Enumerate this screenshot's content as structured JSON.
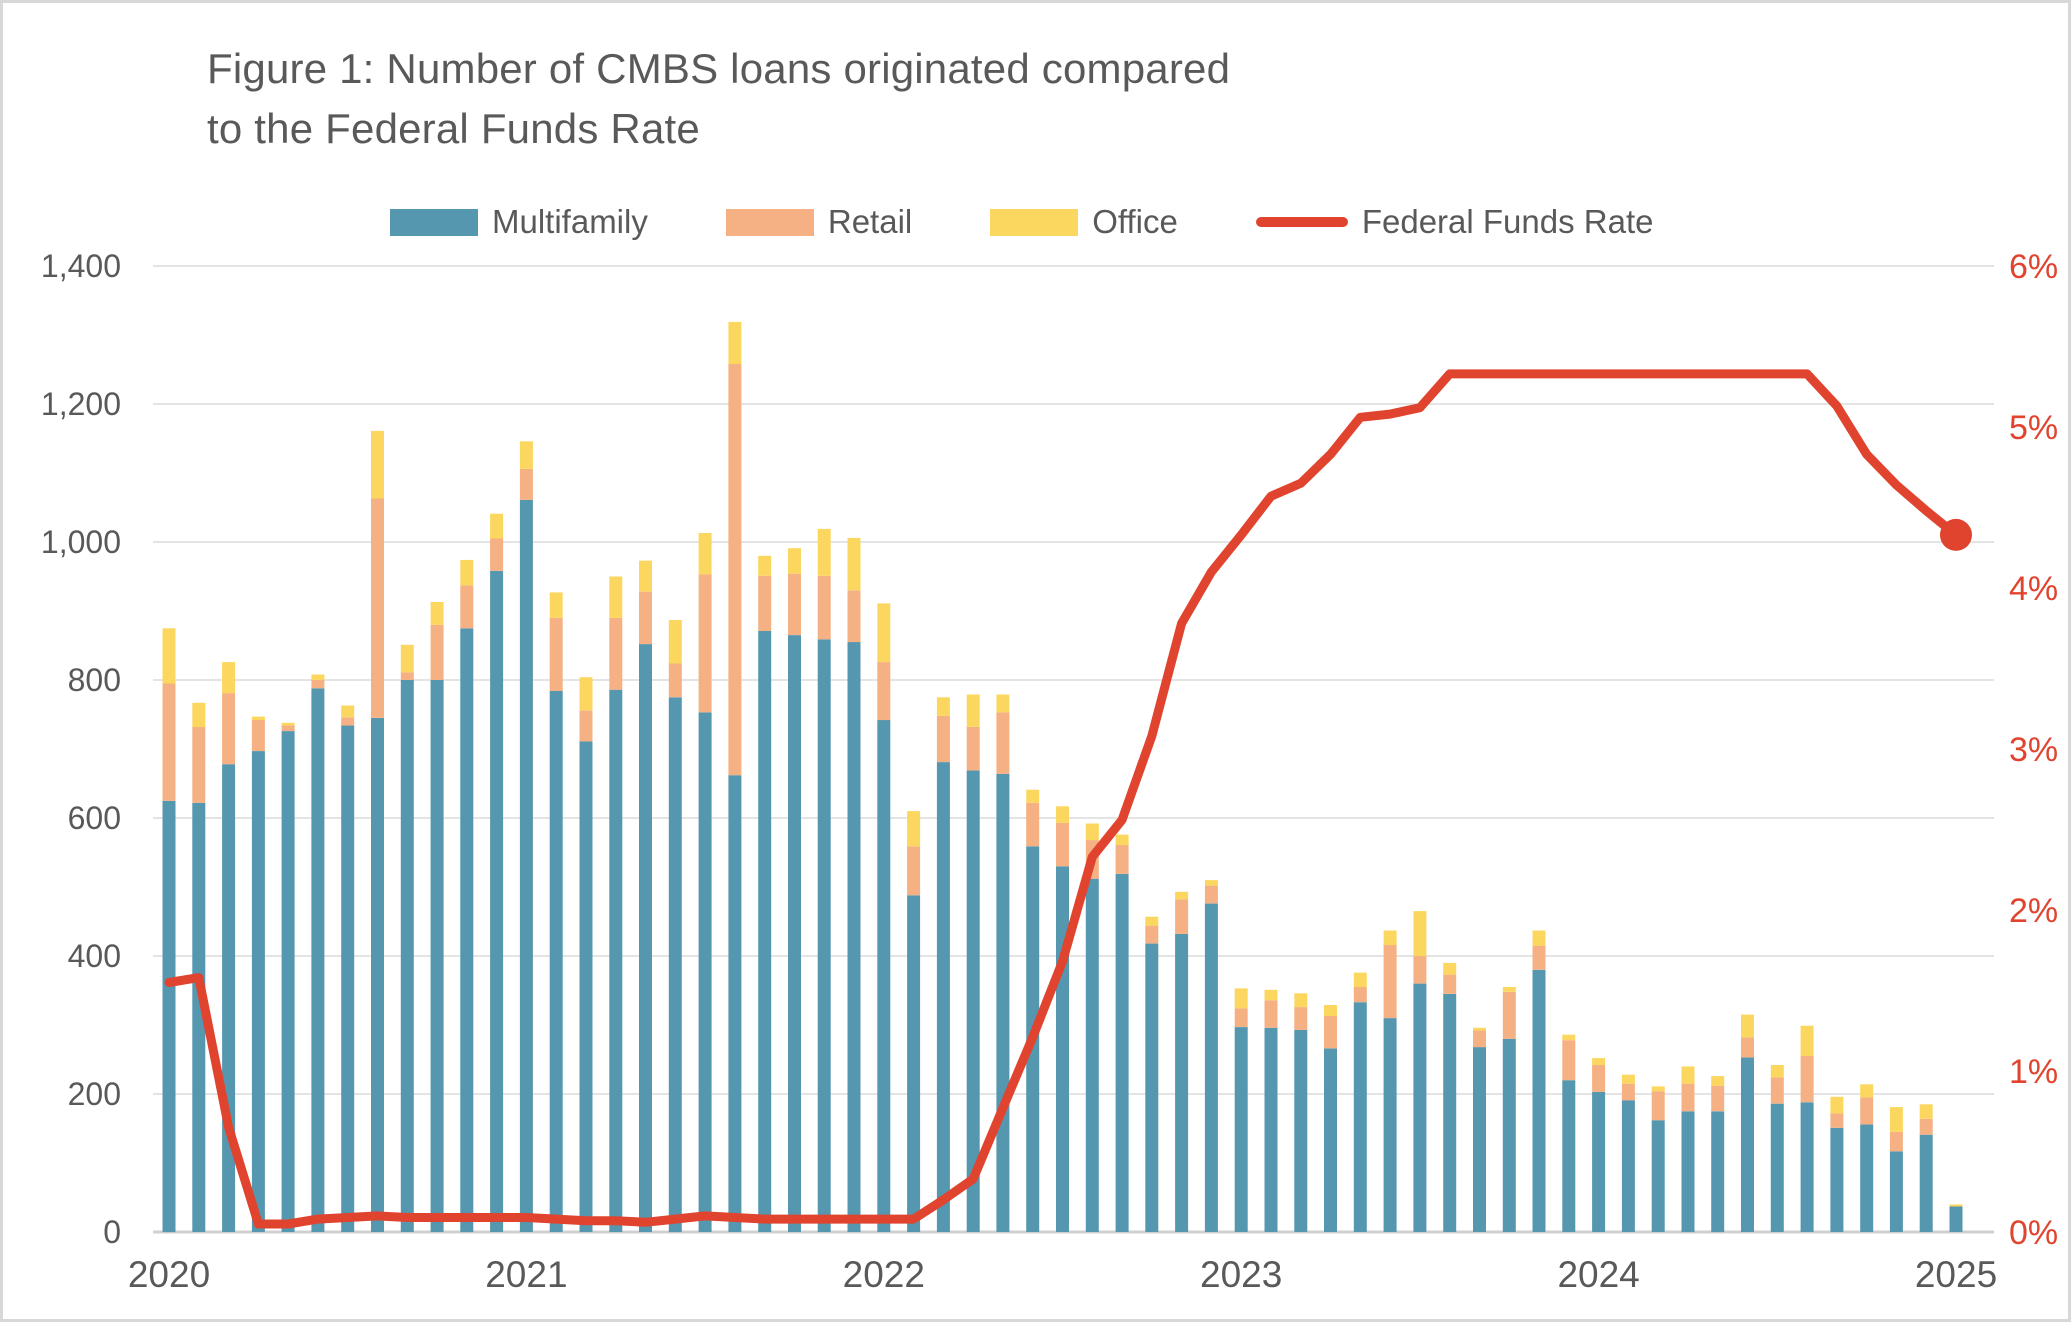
{
  "figure": {
    "title_line1": "Figure 1: Number of CMBS loans originated compared",
    "title_line2": "to the Federal Funds Rate"
  },
  "legend": {
    "items": [
      {
        "label": "Multifamily",
        "color": "#5697b0",
        "type": "swatch"
      },
      {
        "label": "Retail",
        "color": "#f5b183",
        "type": "swatch"
      },
      {
        "label": "Office",
        "color": "#fcd75f",
        "type": "swatch"
      },
      {
        "label": "Federal Funds Rate",
        "color": "#e0442f",
        "type": "line"
      }
    ]
  },
  "colors": {
    "multifamily": "#5697b0",
    "retail": "#f5b183",
    "office": "#fcd75f",
    "ffr_line": "#e0442f",
    "text_gray": "#595959",
    "gridline": "#dbdbdb",
    "axis_line": "#d0d0d0",
    "right_axis_text": "#e0442f"
  },
  "chart_data": {
    "type": "bar",
    "subtype": "stacked-bars-with-line",
    "title": "Figure 1: Number of CMBS loans originated compared to the Federal Funds Rate",
    "x": [
      "Jan 2020",
      "Feb 2020",
      "Mar 2020",
      "Apr 2020",
      "May 2020",
      "Jun 2020",
      "Jul 2020",
      "Aug 2020",
      "Sep 2020",
      "Oct 2020",
      "Nov 2020",
      "Dec 2020",
      "Jan 2021",
      "Feb 2021",
      "Mar 2021",
      "Apr 2021",
      "May 2021",
      "Jun 2021",
      "Jul 2021",
      "Aug 2021",
      "Sep 2021",
      "Oct 2021",
      "Nov 2021",
      "Dec 2021",
      "Jan 2022",
      "Feb 2022",
      "Mar 2022",
      "Apr 2022",
      "May 2022",
      "Jun 2022",
      "Jul 2022",
      "Aug 2022",
      "Sep 2022",
      "Oct 2022",
      "Nov 2022",
      "Dec 2022",
      "Jan 2023",
      "Feb 2023",
      "Mar 2023",
      "Apr 2023",
      "May 2023",
      "Jun 2023",
      "Jul 2023",
      "Aug 2023",
      "Sep 2023",
      "Oct 2023",
      "Nov 2023",
      "Dec 2023",
      "Jan 2024",
      "Feb 2024",
      "Mar 2024",
      "Apr 2024",
      "May 2024",
      "Jun 2024",
      "Jul 2024",
      "Aug 2024",
      "Sep 2024",
      "Oct 2024",
      "Nov 2024",
      "Dec 2024",
      "Jan 2025"
    ],
    "series": [
      {
        "name": "Multifamily",
        "type": "bar",
        "stack": true,
        "color": "#5697b0",
        "values": [
          625,
          622,
          678,
          697,
          726,
          788,
          734,
          745,
          800,
          800,
          875,
          958,
          1061,
          784,
          711,
          786,
          852,
          775,
          753,
          662,
          871,
          865,
          859,
          855,
          742,
          488,
          681,
          669,
          664,
          559,
          530,
          512,
          519,
          418,
          432,
          476,
          297,
          296,
          293,
          266,
          333,
          310,
          360,
          345,
          268,
          280,
          380,
          220,
          203,
          191,
          162,
          175,
          175,
          253,
          186,
          188,
          151,
          156,
          117,
          141,
          37
        ]
      },
      {
        "name": "Retail",
        "type": "bar",
        "stack": true,
        "color": "#f5b183",
        "values": [
          170,
          110,
          103,
          45,
          8,
          12,
          12,
          318,
          11,
          80,
          62,
          47,
          45,
          106,
          45,
          104,
          76,
          49,
          200,
          596,
          80,
          89,
          92,
          75,
          84,
          71,
          67,
          63,
          89,
          63,
          63,
          56,
          42,
          26,
          50,
          26,
          27,
          40,
          33,
          47,
          22,
          106,
          40,
          28,
          24,
          68,
          35,
          58,
          39,
          24,
          42,
          40,
          37,
          29,
          38,
          67,
          21,
          39,
          28,
          23,
          0
        ]
      },
      {
        "name": "Office",
        "type": "bar",
        "stack": true,
        "color": "#fcd75f",
        "values": [
          80,
          35,
          45,
          5,
          4,
          8,
          17,
          98,
          40,
          33,
          37,
          36,
          40,
          37,
          48,
          60,
          45,
          63,
          60,
          61,
          29,
          37,
          68,
          76,
          85,
          51,
          27,
          47,
          26,
          19,
          24,
          24,
          15,
          13,
          11,
          8,
          29,
          15,
          20,
          16,
          21,
          21,
          65,
          17,
          4,
          7,
          22,
          8,
          10,
          13,
          7,
          25,
          14,
          33,
          18,
          44,
          24,
          19,
          36,
          21,
          3
        ]
      },
      {
        "name": "Federal Funds Rate",
        "type": "line",
        "axis": "right",
        "color": "#e0442f",
        "end_dot": true,
        "values": [
          1.55,
          1.58,
          0.65,
          0.05,
          0.05,
          0.08,
          0.09,
          0.1,
          0.09,
          0.09,
          0.09,
          0.09,
          0.09,
          0.08,
          0.07,
          0.07,
          0.06,
          0.08,
          0.1,
          0.09,
          0.08,
          0.08,
          0.08,
          0.08,
          0.08,
          0.08,
          0.2,
          0.33,
          0.77,
          1.21,
          1.68,
          2.33,
          2.56,
          3.08,
          3.78,
          4.1,
          4.33,
          4.57,
          4.65,
          4.83,
          5.06,
          5.08,
          5.12,
          5.33,
          5.33,
          5.33,
          5.33,
          5.33,
          5.33,
          5.33,
          5.33,
          5.33,
          5.33,
          5.33,
          5.33,
          5.33,
          5.13,
          4.83,
          4.64,
          4.48,
          4.33
        ]
      }
    ],
    "left_axis": {
      "min": 0,
      "max": 1400,
      "tick_step": 200,
      "tick_labels": [
        "0",
        "200",
        "400",
        "600",
        "800",
        "1,000",
        "1,200",
        "1,400"
      ]
    },
    "right_axis": {
      "min": 0,
      "max": 6,
      "tick_step": 1,
      "tick_labels": [
        "0%",
        "1%",
        "2%",
        "3%",
        "4%",
        "5%",
        "6%"
      ],
      "color": "#e0442f"
    },
    "x_ticks": {
      "labels": [
        "2020",
        "2021",
        "2022",
        "2023",
        "2024",
        "2025"
      ],
      "at_month_index": [
        0,
        12,
        24,
        36,
        48,
        60
      ]
    },
    "grid": true,
    "legend_position": "top"
  }
}
